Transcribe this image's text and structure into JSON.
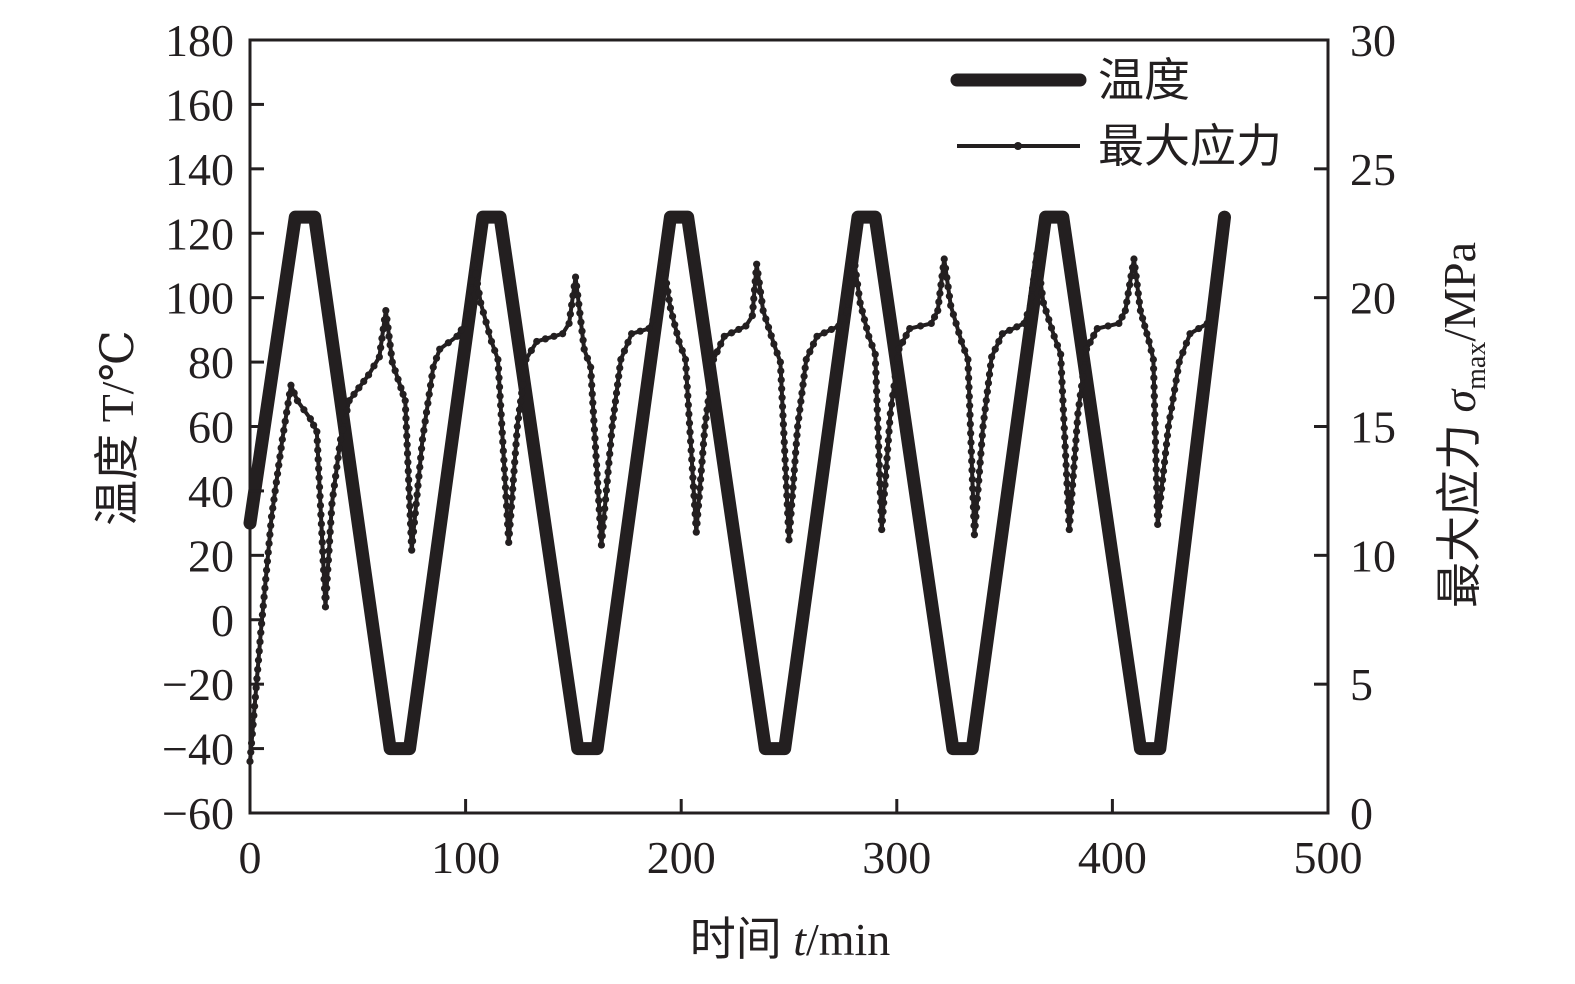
{
  "chart_data": {
    "type": "line",
    "title": "",
    "xlabel": "时间 t/min",
    "ylabel": "温度 T/℃",
    "ylabel_right": "最大应力 σmax/MPa",
    "ylabel_parts": {
      "cn": "温度 ",
      "var": "T",
      "unit": "/℃"
    },
    "xlabel_parts": {
      "cn": "时间 ",
      "var": "t",
      "unit": "/min"
    },
    "ylabel_right_parts": {
      "cn": "最大应力 ",
      "var": "σ",
      "sub": "max",
      "unit": "/MPa"
    },
    "xlim": [
      0,
      500
    ],
    "ylim": [
      -60,
      180
    ],
    "ylim_right": [
      0,
      30
    ],
    "xticks": [
      0,
      100,
      200,
      300,
      400,
      500
    ],
    "yticks": [
      -60,
      -40,
      -20,
      0,
      20,
      40,
      60,
      80,
      100,
      120,
      140,
      160,
      180
    ],
    "yticks_right": [
      0,
      5,
      10,
      15,
      20,
      25,
      30
    ],
    "grid": false,
    "legend_position": "top-right",
    "series": [
      {
        "name": "温度",
        "axis": "left",
        "style": "thick",
        "color": "#231f20",
        "x": [
          0,
          21,
          30,
          65,
          74,
          108,
          116,
          152,
          161,
          195,
          203,
          239,
          248,
          282,
          290,
          326,
          335,
          369,
          377,
          413,
          422,
          452
        ],
        "y": [
          30,
          125,
          125,
          -40,
          -40,
          125,
          125,
          -40,
          -40,
          125,
          125,
          -40,
          -40,
          125,
          125,
          -40,
          -40,
          125,
          125,
          -40,
          -40,
          125
        ]
      },
      {
        "name": "最大应力",
        "axis": "right",
        "style": "thin-marker",
        "color": "#231f20",
        "x": [
          0,
          5,
          10,
          15,
          19,
          22,
          28,
          31,
          35,
          38,
          42,
          46,
          55,
          60,
          63,
          66,
          70,
          72,
          75,
          80,
          85,
          88,
          96,
          100,
          104,
          107,
          112,
          115,
          120,
          124,
          128,
          133,
          145,
          148,
          151,
          155,
          158,
          163,
          168,
          172,
          177,
          185,
          189,
          192,
          195,
          199,
          202,
          207,
          211,
          215,
          220,
          230,
          233,
          235,
          238,
          243,
          246,
          250,
          254,
          258,
          263,
          273,
          277,
          280,
          283,
          287,
          290,
          293,
          297,
          301,
          306,
          316,
          319,
          322,
          325,
          330,
          333,
          336,
          340,
          344,
          349,
          359,
          362,
          365,
          368,
          373,
          376,
          380,
          384,
          388,
          393,
          403,
          406,
          410,
          413,
          417,
          419,
          421,
          426,
          431,
          436,
          444,
          448
        ],
        "y": [
          2,
          7,
          11.5,
          14.5,
          16.6,
          16,
          15.3,
          14.8,
          8,
          12,
          14.5,
          16,
          17,
          17.7,
          19.5,
          17.5,
          16.5,
          16,
          10.2,
          14.5,
          17.3,
          18,
          18.5,
          19,
          21.3,
          19.8,
          18.3,
          17.6,
          10.5,
          15,
          17.6,
          18.3,
          18.6,
          19,
          20.8,
          18,
          17.3,
          10.4,
          15,
          17.6,
          18.6,
          18.8,
          19.5,
          21.2,
          19.6,
          18.3,
          17.6,
          10.9,
          15,
          17.6,
          18.5,
          18.9,
          19.3,
          21.3,
          19.5,
          18.2,
          17.5,
          10.6,
          15,
          17.6,
          18.5,
          18.9,
          19.5,
          21.6,
          19.8,
          18.5,
          17.8,
          11,
          15.5,
          18,
          18.8,
          19,
          19.5,
          21.5,
          19.7,
          18.3,
          17.6,
          10.8,
          15,
          17.7,
          18.6,
          19,
          19.7,
          21.7,
          19.8,
          18.5,
          17.8,
          11,
          15.5,
          18,
          18.8,
          19,
          19.5,
          21.5,
          19.5,
          18.3,
          17.6,
          11.2,
          15,
          17.5,
          18.6,
          19,
          19.2
        ]
      }
    ]
  }
}
